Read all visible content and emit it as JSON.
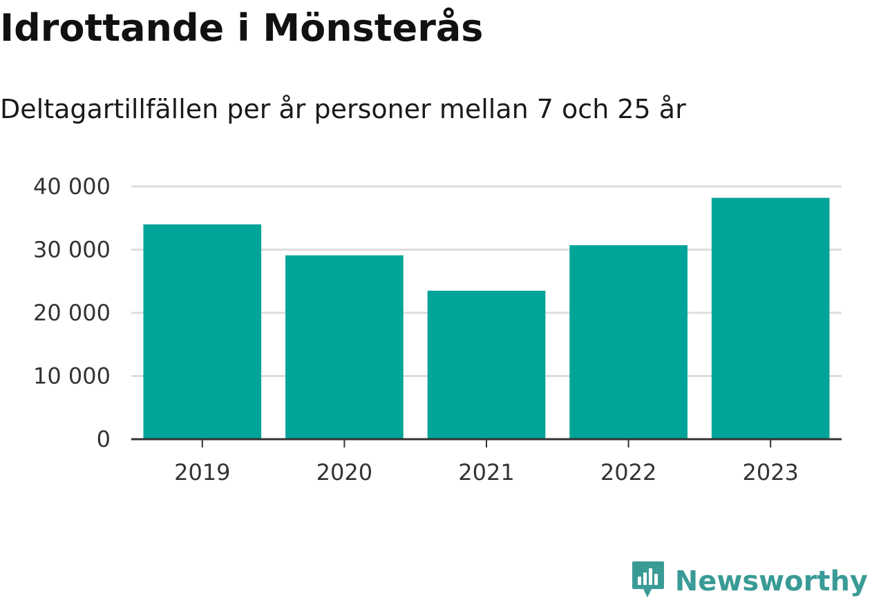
{
  "header": {
    "title": "Idrottande i Mönsterås",
    "subtitle": "Deltagartillfällen per år personer mellan 7 och 25 år"
  },
  "brand": {
    "name": "Newsworthy",
    "icon": "newsworthy-logo-icon",
    "color": "#3a9b96"
  },
  "colors": {
    "bar": "#00a499",
    "grid": "#dddddd",
    "axis": "#333333",
    "text": "#333333"
  },
  "chart_data": {
    "type": "bar",
    "title": "Idrottande i Mönsterås",
    "subtitle": "Deltagartillfällen per år personer mellan 7 och 25 år",
    "xlabel": "",
    "ylabel": "",
    "categories": [
      "2019",
      "2020",
      "2021",
      "2022",
      "2023"
    ],
    "values": [
      34000,
      29100,
      23500,
      30700,
      38200
    ],
    "ylim": [
      0,
      40000
    ],
    "yticks": [
      0,
      10000,
      20000,
      30000,
      40000
    ],
    "ytick_labels": [
      "0",
      "10 000",
      "20 000",
      "30 000",
      "40 000"
    ],
    "grid": true,
    "legend": "none"
  }
}
